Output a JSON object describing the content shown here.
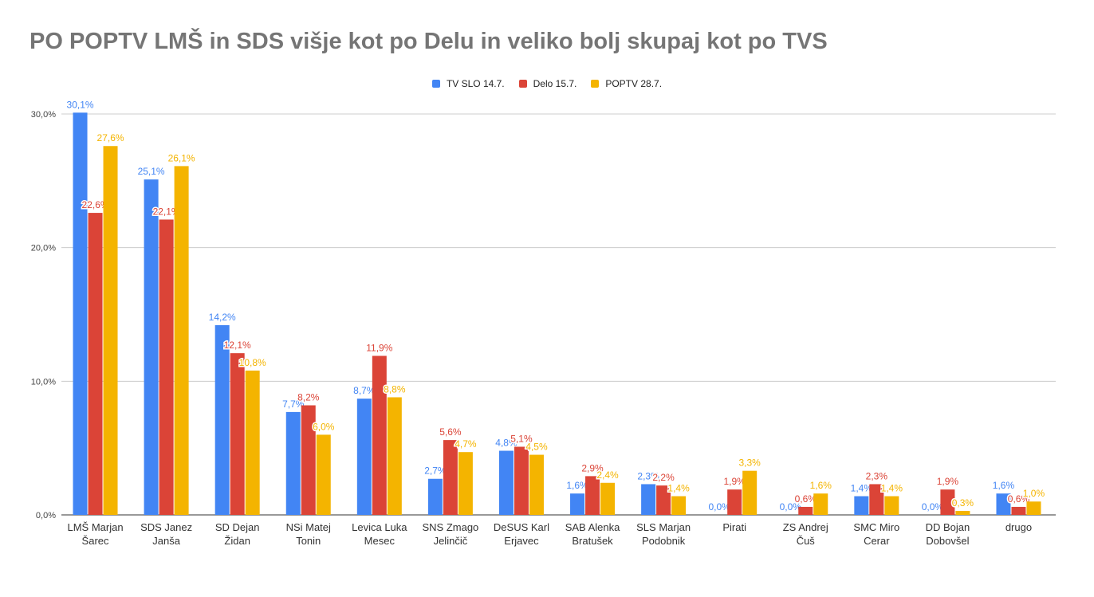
{
  "title": "PO POPTV LMŠ in SDS višje kot po Delu in veliko bolj skupaj kot po TVS",
  "legend": [
    {
      "label": "TV SLO 14.7.",
      "color": "#4285f4"
    },
    {
      "label": "Delo 15.7.",
      "color": "#db4437"
    },
    {
      "label": "POPTV 28.7.",
      "color": "#f4b400"
    }
  ],
  "chart_data": {
    "type": "bar",
    "title": "PO POPTV LMŠ in SDS višje kot po Delu in veliko bolj skupaj kot po TVS",
    "xlabel": "",
    "ylabel": "",
    "ylim": [
      0,
      30
    ],
    "yticks": [
      "0,0%",
      "10,0%",
      "20,0%",
      "30,0%"
    ],
    "ytick_values": [
      0,
      10,
      20,
      30
    ],
    "grid": true,
    "legend_position": "top",
    "categories": [
      [
        "LMŠ Marjan",
        "Šarec"
      ],
      [
        "SDS Janez",
        "Janša"
      ],
      [
        "SD Dejan",
        "Židan"
      ],
      [
        "NSi Matej",
        "Tonin"
      ],
      [
        "Levica Luka",
        "Mesec"
      ],
      [
        "SNS Zmago",
        "Jelinčič"
      ],
      [
        "DeSUS Karl",
        "Erjavec"
      ],
      [
        "SAB Alenka",
        "Bratušek"
      ],
      [
        "SLS Marjan",
        "Podobnik"
      ],
      [
        "Pirati"
      ],
      [
        "ZS Andrej",
        "Čuš"
      ],
      [
        "SMC Miro",
        "Cerar"
      ],
      [
        "DD Bojan",
        "Dobovšel"
      ],
      [
        "drugo"
      ]
    ],
    "series": [
      {
        "name": "TV SLO 14.7.",
        "color": "#4285f4",
        "values": [
          30.1,
          25.1,
          14.2,
          7.7,
          8.7,
          2.7,
          4.8,
          1.6,
          2.3,
          0.0,
          0.0,
          1.4,
          0.0,
          1.6
        ],
        "labels": [
          "30,1%",
          "25,1%",
          "14,2%",
          "7,7%",
          "8,7%",
          "2,7%",
          "4,8%",
          "1,6%",
          "2,3%",
          "0,0%",
          "0,0%",
          "1,4%",
          "0,0%",
          "1,6%"
        ]
      },
      {
        "name": "Delo 15.7.",
        "color": "#db4437",
        "values": [
          22.6,
          22.1,
          12.1,
          8.2,
          11.9,
          5.6,
          5.1,
          2.9,
          2.2,
          1.9,
          0.6,
          2.3,
          1.9,
          0.6
        ],
        "labels": [
          "22,6%",
          "22,1%",
          "12,1%",
          "8,2%",
          "11,9%",
          "5,6%",
          "5,1%",
          "2,9%",
          "2,2%",
          "1,9%",
          "0,6%",
          "2,3%",
          "1,9%",
          "0,6%"
        ]
      },
      {
        "name": "POPTV 28.7.",
        "color": "#f4b400",
        "values": [
          27.6,
          26.1,
          10.8,
          6.0,
          8.8,
          4.7,
          4.5,
          2.4,
          1.4,
          3.3,
          1.6,
          1.4,
          0.3,
          1.0
        ],
        "labels": [
          "27,6%",
          "26,1%",
          "10,8%",
          "6,0%",
          "8,8%",
          "4,7%",
          "4,5%",
          "2,4%",
          "1,4%",
          "3,3%",
          "1,6%",
          "1,4%",
          "0,3%",
          "1,0%"
        ]
      }
    ]
  }
}
